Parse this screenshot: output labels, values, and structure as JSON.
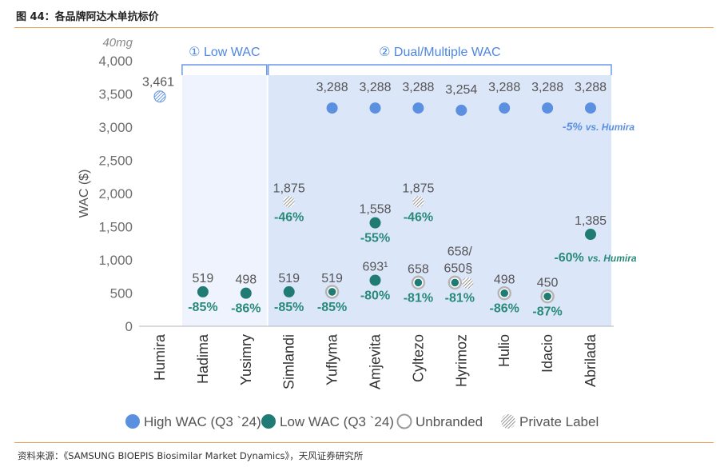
{
  "figure": {
    "title": "图 44：各品牌阿达木单抗标价",
    "source": "资料来源：《SAMSUNG BIOEPIS Biosimilar Market Dynamics》，天风证券研究所"
  },
  "chart_data": {
    "type": "scatter",
    "ylabel": "WAC ($)",
    "yunit_note": "40mg",
    "ylim": [
      0,
      4000
    ],
    "yticks": [
      "0",
      "500",
      "1,000",
      "1,500",
      "2,000",
      "2,500",
      "3,000",
      "3,500",
      "4,000"
    ],
    "categories": [
      "Humira",
      "Hadima",
      "Yusimry",
      "Simlandi",
      "Yuflyma",
      "Amjevita",
      "Cyltezo",
      "Hyrimoz",
      "Hulio",
      "Idacio",
      "Abrilada"
    ],
    "groups": [
      {
        "label": "① Low WAC",
        "categories": [
          "Hadima",
          "Yusimry"
        ]
      },
      {
        "label": "② Dual/Multiple WAC",
        "categories": [
          "Simlandi",
          "Yuflyma",
          "Amjevita",
          "Cyltezo",
          "Hyrimoz",
          "Hulio",
          "Idacio",
          "Abrilada"
        ]
      }
    ],
    "legend": {
      "placement": "bottom",
      "items": [
        "High WAC (Q3 `24)",
        "Low WAC (Q3 `24)",
        "Unbranded",
        "Private Label"
      ]
    },
    "series": [
      {
        "name": "High WAC (Q3 `24)",
        "color": "#5b8fe0",
        "points": [
          {
            "x": "Yuflyma",
            "y": 3288,
            "label": "3,288"
          },
          {
            "x": "Amjevita",
            "y": 3288,
            "label": "3,288"
          },
          {
            "x": "Cyltezo",
            "y": 3288,
            "label": "3,288"
          },
          {
            "x": "Hyrimoz",
            "y": 3254,
            "label": "3,254"
          },
          {
            "x": "Hulio",
            "y": 3288,
            "label": "3,288"
          },
          {
            "x": "Idacio",
            "y": 3288,
            "label": "3,288"
          },
          {
            "x": "Abrilada",
            "y": 3288,
            "label": "3,288"
          }
        ]
      },
      {
        "name": "Low WAC (Q3 `24)",
        "color": "#1f7b74",
        "points": [
          {
            "x": "Hadima",
            "y": 519,
            "label": "519",
            "pct": "-85%"
          },
          {
            "x": "Yusimry",
            "y": 498,
            "label": "498",
            "pct": "-86%"
          },
          {
            "x": "Simlandi",
            "y": 519,
            "label": "519",
            "pct": "-85%"
          },
          {
            "x": "Amjevita",
            "y": 1558,
            "label": "1,558",
            "pct": "-55%"
          },
          {
            "x": "Amjevita",
            "y": 693,
            "label": "693¹",
            "pct": "-80%"
          },
          {
            "x": "Abrilada",
            "y": 1385,
            "label": "1,385",
            "pct": "-60% vs. Humira"
          }
        ]
      },
      {
        "name": "Unbranded",
        "color": "#1f7b74",
        "points": [
          {
            "x": "Yuflyma",
            "y": 519,
            "label": "519",
            "pct": "-85%"
          },
          {
            "x": "Cyltezo",
            "y": 658,
            "label": "658",
            "pct": "-81%"
          },
          {
            "x": "Hyrimoz",
            "y": 658,
            "label": "658/",
            "pct": "-81%"
          },
          {
            "x": "Hulio",
            "y": 498,
            "label": "498",
            "pct": "-86%"
          },
          {
            "x": "Idacio",
            "y": 450,
            "label": "450",
            "pct": "-87%"
          }
        ]
      },
      {
        "name": "Private Label",
        "color": "#8c8c8c",
        "points": [
          {
            "x": "Simlandi",
            "y": 1875,
            "label": "1,875",
            "pct": "-46%"
          },
          {
            "x": "Cyltezo",
            "y": 1875,
            "label": "1,875",
            "pct": "-46%"
          },
          {
            "x": "Hyrimoz",
            "y": 650,
            "label": "650§"
          }
        ]
      },
      {
        "name": "Humira",
        "color": "#5b8fe0",
        "points": [
          {
            "x": "Humira",
            "y": 3461,
            "label": "3,461"
          }
        ]
      }
    ],
    "annotations": [
      {
        "text": "-5% vs. Humira",
        "near": "Abrilada",
        "color": "#5b8fe0"
      }
    ]
  }
}
